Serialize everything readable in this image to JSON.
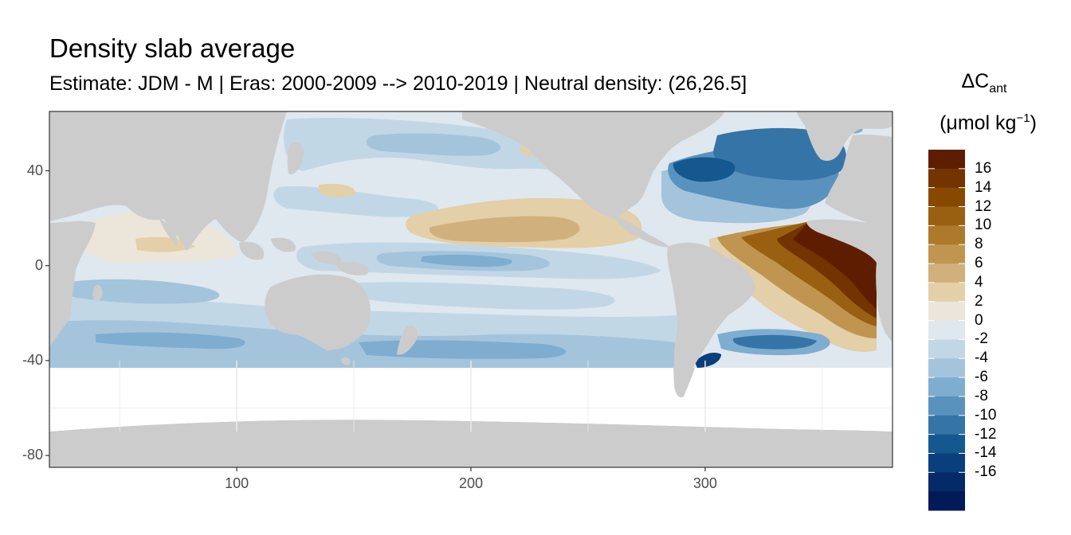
{
  "chart_data": {
    "type": "heatmap",
    "title": "Density slab average",
    "subtitle": "Estimate: JDM - M | Eras: 2000-2009 --> 2010-2019 | Neutral density: (26,26.5]",
    "xlabel": "",
    "ylabel": "",
    "xlim": [
      20,
      380
    ],
    "ylim": [
      -85,
      65
    ],
    "x_ticks": [
      "100",
      "200",
      "300"
    ],
    "x_tick_values": [
      100,
      200,
      300
    ],
    "y_ticks": [
      "40",
      "0",
      "-40",
      "-80"
    ],
    "y_tick_values": [
      40,
      0,
      -40,
      -80
    ],
    "grid": true,
    "legend": {
      "title_main": "ΔC",
      "title_sub": "ant",
      "units_main": "(μmol kg",
      "units_sup": "−1",
      "units_end": ")",
      "placement": "right",
      "labels": [
        "16",
        "14",
        "12",
        "10",
        "8",
        "6",
        "4",
        "2",
        "0",
        "-2",
        "-4",
        "-6",
        "-8",
        "-10",
        "-12",
        "-14",
        "-16"
      ],
      "colors": [
        "#5f1d00",
        "#733400",
        "#874900",
        "#9a6011",
        "#ad7a2c",
        "#bf9550",
        "#d0b07c",
        "#e3cfa8",
        "#ece6da",
        "#dfe8ee",
        "#c2d7e6",
        "#a4c4dc",
        "#7eadd0",
        "#5a92be",
        "#3574a7",
        "#14588f",
        "#083f7c",
        "#042a68",
        "#011b58"
      ]
    },
    "land_color": "#cccccc",
    "nodata_color": "#ffffff"
  }
}
